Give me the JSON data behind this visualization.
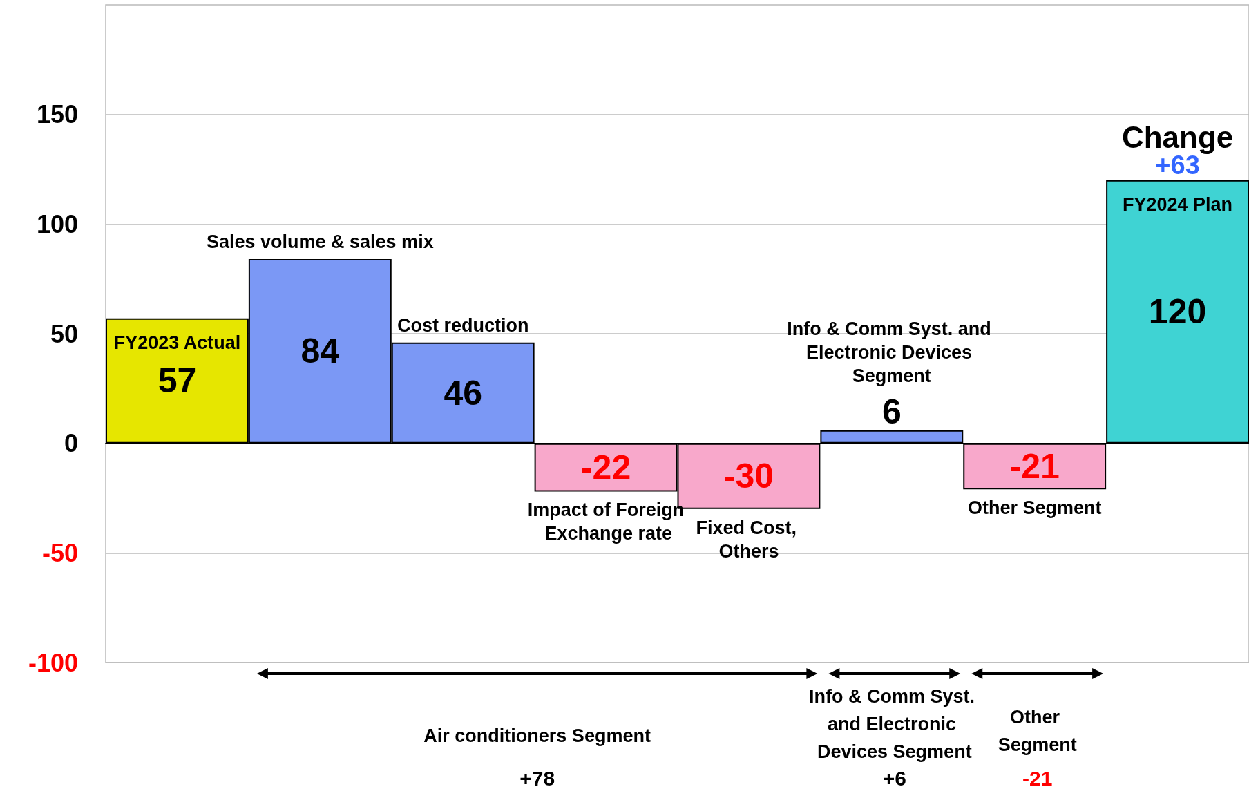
{
  "chart_data": {
    "type": "bar",
    "categories": [
      "FY2023 Actual",
      "Sales volume & sales mix",
      "Cost reduction",
      "Impact of Foreign Exchange rate",
      "Fixed Cost, Others",
      "Info & Comm Syst. and Electronic Devices Segment",
      "Other Segment",
      "FY2024 Plan"
    ],
    "values": [
      57,
      84,
      46,
      -22,
      -30,
      6,
      -21,
      120
    ],
    "colors": [
      "#e6e600",
      "#7b98f5",
      "#7b98f5",
      "#f8a8cb",
      "#f8a8cb",
      "#7b98f5",
      "#f8a8cb",
      "#3fd3d3"
    ],
    "ylim": [
      -100,
      200
    ],
    "yticks": [
      -100,
      -50,
      0,
      50,
      100,
      150
    ],
    "grid": "y",
    "data_labels": true,
    "annotations": [
      "Change",
      "+63",
      "Air conditioners Segment",
      "+78",
      "Info & Comm Syst. and Electronic Devices Segment",
      "+6",
      "Other Segment",
      "-21"
    ]
  }
}
